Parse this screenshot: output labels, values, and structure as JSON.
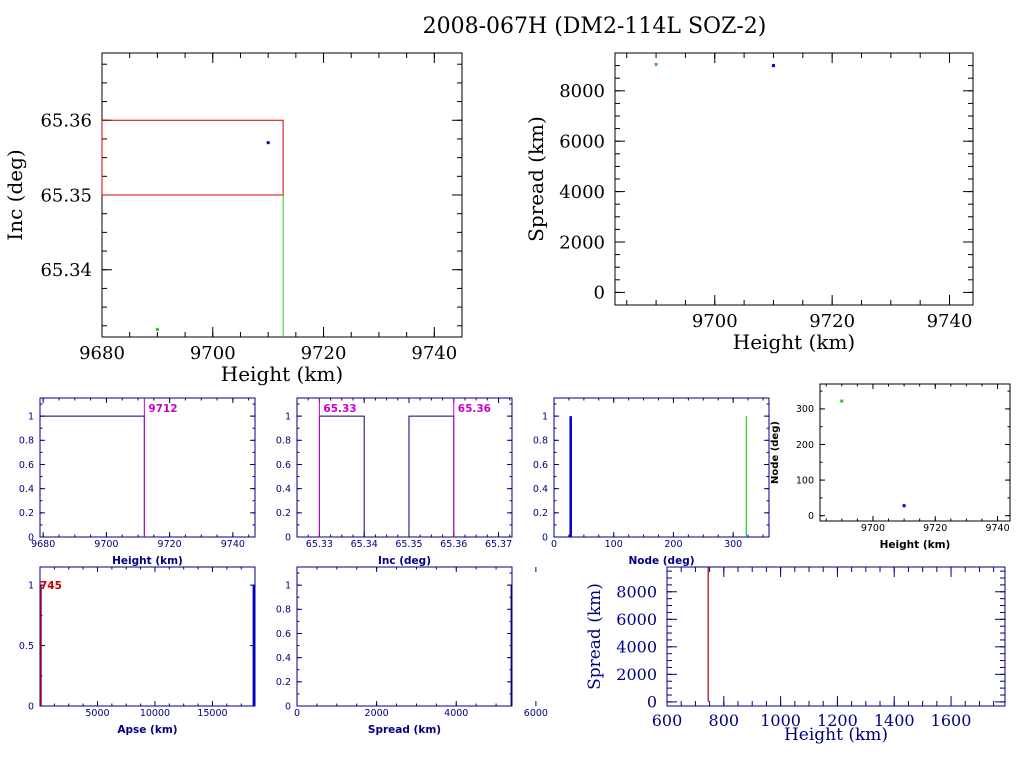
{
  "title": "2008-067H (DM2-114L SOZ-2)",
  "colors": {
    "black": "#000000",
    "navy": "#000080",
    "red": "#cc0000",
    "darkred": "#aa0000",
    "green": "#22cc22",
    "blue": "#0000cc",
    "magenta": "#cc00cc"
  },
  "chart_data": [
    {
      "id": "inc_vs_height",
      "type": "scatter",
      "xlabel": "Height (km)",
      "ylabel": "Inc (deg)",
      "xlim": [
        9680,
        9745
      ],
      "ylim": [
        65.331,
        65.369
      ],
      "xticks": [
        9680,
        9700,
        9720,
        9740
      ],
      "yticks": [
        65.34,
        65.35,
        65.36
      ],
      "series": [
        {
          "points": [
            [
              9690,
              65.332
            ]
          ],
          "color": "green"
        },
        {
          "points": [
            [
              9710,
              65.357
            ]
          ],
          "color": "blue"
        }
      ],
      "box": {
        "x": [
          9680,
          9712.7
        ],
        "y": [
          65.35,
          65.36
        ],
        "color": "red"
      },
      "vline": {
        "x": 9712.7,
        "y": [
          65.331,
          65.35
        ],
        "color": "green"
      }
    },
    {
      "id": "spread_vs_height",
      "type": "scatter",
      "xlabel": "Height (km)",
      "ylabel": "Spread (km)",
      "xlim": [
        9683,
        9744
      ],
      "ylim": [
        -500,
        9500
      ],
      "xticks": [
        9700,
        9720,
        9740
      ],
      "yticks": [
        0,
        2000,
        4000,
        6000,
        8000
      ],
      "series": [
        {
          "points": [
            [
              9690,
              9050
            ]
          ],
          "color": "green"
        },
        {
          "points": [
            [
              9710,
              9000
            ]
          ],
          "color": "blue"
        }
      ]
    },
    {
      "id": "hist_height",
      "type": "line",
      "xlabel": "Height (km)",
      "xlim": [
        9679,
        9747
      ],
      "ylim": [
        0,
        1.15
      ],
      "xticks": [
        9680,
        9700,
        9720,
        9740
      ],
      "yticks": [
        0,
        0.2,
        0.4,
        0.6,
        0.8,
        1
      ],
      "ytick_labels": [
        "0",
        "0.2",
        "0.4",
        "0.6",
        "0.8",
        "1"
      ],
      "step": [
        [
          9679,
          1
        ],
        [
          9712,
          1
        ],
        [
          9712,
          0
        ]
      ],
      "marker": {
        "x": 9712,
        "label": "9712",
        "color": "magenta"
      }
    },
    {
      "id": "hist_inc",
      "type": "line",
      "xlabel": "Inc (deg)",
      "xlim": [
        65.325,
        65.373
      ],
      "ylim": [
        0,
        1.15
      ],
      "xticks": [
        65.33,
        65.34,
        65.35,
        65.36,
        65.37
      ],
      "yticks": [
        0,
        0.2,
        0.4,
        0.6,
        0.8,
        1
      ],
      "ytick_labels": [
        "0",
        "0.2",
        "0.4",
        "0.6",
        "0.8",
        "1"
      ],
      "boxes": [
        [
          65.33,
          65.34,
          1
        ],
        [
          65.35,
          65.36,
          1
        ]
      ],
      "markers": [
        {
          "x": 65.33,
          "label": "65.33",
          "color": "magenta"
        },
        {
          "x": 65.36,
          "label": "65.36",
          "color": "magenta"
        }
      ]
    },
    {
      "id": "hist_node",
      "type": "bar",
      "xlabel": "Node (deg)",
      "xlim": [
        0,
        360
      ],
      "ylim": [
        0,
        1.15
      ],
      "xticks": [
        0,
        100,
        200,
        300
      ],
      "yticks": [
        0,
        0.2,
        0.4,
        0.6,
        0.8,
        1
      ],
      "ytick_labels": [
        "0",
        "0.2",
        "0.4",
        "0.6",
        "0.8",
        "1"
      ],
      "bars": [
        {
          "x": 28,
          "value": 1,
          "color": "blue"
        },
        {
          "x": 322,
          "value": 1,
          "color": "green"
        }
      ]
    },
    {
      "id": "node_vs_height",
      "type": "scatter",
      "xlabel": "Height (km)",
      "ylabel": "Node (deg)",
      "xlim": [
        9683,
        9744
      ],
      "ylim": [
        -15,
        370
      ],
      "xticks": [
        9700,
        9720,
        9740
      ],
      "yticks": [
        0,
        100,
        200,
        300
      ],
      "series": [
        {
          "points": [
            [
              9690,
              322
            ]
          ],
          "color": "green"
        },
        {
          "points": [
            [
              9710,
              28
            ]
          ],
          "color": "blue"
        }
      ]
    },
    {
      "id": "hist_apse",
      "type": "line",
      "xlabel": "Apse (km)",
      "xlim": [
        0,
        18700
      ],
      "ylim": [
        0,
        1.15
      ],
      "xticks": [
        5000,
        10000,
        15000
      ],
      "yticks": [
        0,
        0.5,
        1
      ],
      "ytick_labels": [
        "0",
        "0.5",
        "1"
      ],
      "lines": [
        {
          "x": 100,
          "value": 1,
          "color": "red"
        },
        {
          "x": 18600,
          "value": 1,
          "color": "blue"
        }
      ],
      "marker": {
        "x": 745,
        "label": "745",
        "color": "red"
      }
    },
    {
      "id": "hist_spread",
      "type": "line",
      "xlabel": "Spread (km)",
      "xlim": [
        0,
        5400
      ],
      "ylim": [
        0,
        1.15
      ],
      "xticks": [
        0,
        2000,
        4000,
        6000
      ],
      "yticks": [
        0,
        0.2,
        0.4,
        0.6,
        0.8,
        1
      ],
      "ytick_labels": [
        "0",
        "0.2",
        "0.4",
        "0.6",
        "0.8",
        "1"
      ],
      "lines": [
        {
          "x": 5380,
          "value": 1,
          "color": "navy"
        }
      ]
    },
    {
      "id": "spread_vs_height_low",
      "type": "line",
      "xlabel": "Height (km)",
      "ylabel": "Spread (km)",
      "xlim": [
        600,
        1790
      ],
      "ylim": [
        -300,
        9800
      ],
      "xticks": [
        600,
        800,
        1000,
        1200,
        1400,
        1600
      ],
      "yticks": [
        0,
        2000,
        4000,
        6000,
        8000
      ],
      "lines": [
        {
          "x": 745,
          "y": [
            0,
            9800
          ],
          "color": "darkred"
        }
      ]
    }
  ]
}
